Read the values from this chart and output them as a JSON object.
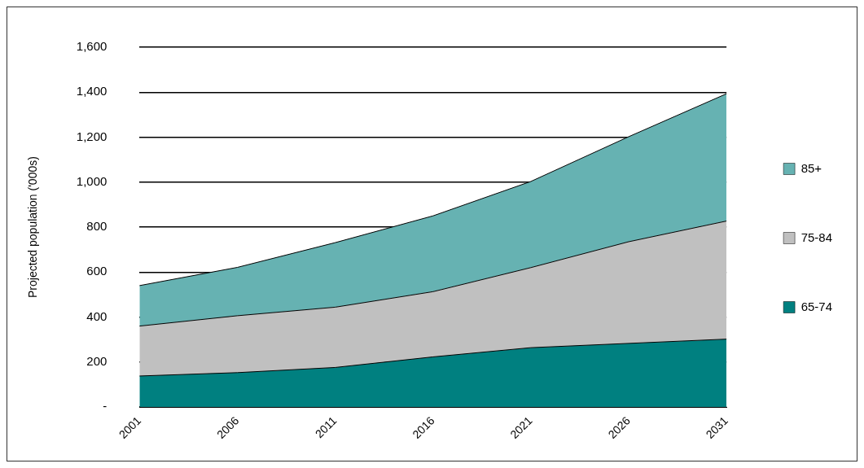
{
  "chart_data": {
    "type": "area",
    "stacked": true,
    "ylabel": "Projected population ('000s)",
    "categories": [
      "2001",
      "2006",
      "2011",
      "2016",
      "2021",
      "2026",
      "2031"
    ],
    "series": [
      {
        "name": "65-74",
        "color": "#008080",
        "values": [
          138,
          153,
          176,
          223,
          264,
          283,
          302
        ]
      },
      {
        "name": "75-84",
        "color": "#c0c0c0",
        "values": [
          222,
          253,
          268,
          290,
          356,
          452,
          525
        ]
      },
      {
        "name": "85+",
        "color": "#66b2b2",
        "values": [
          180,
          215,
          287,
          337,
          383,
          467,
          566
        ]
      }
    ],
    "ylim": [
      0,
      1600
    ],
    "yticks": [
      {
        "value": 0,
        "label": "-"
      },
      {
        "value": 200,
        "label": "200"
      },
      {
        "value": 400,
        "label": "400"
      },
      {
        "value": 600,
        "label": "600"
      },
      {
        "value": 800,
        "label": "800"
      },
      {
        "value": 1000,
        "label": "1,000"
      },
      {
        "value": 1200,
        "label": "1,200"
      },
      {
        "value": 1400,
        "label": "1,400"
      },
      {
        "value": 1600,
        "label": "1,600"
      }
    ],
    "grid": "y",
    "legend": "right"
  }
}
